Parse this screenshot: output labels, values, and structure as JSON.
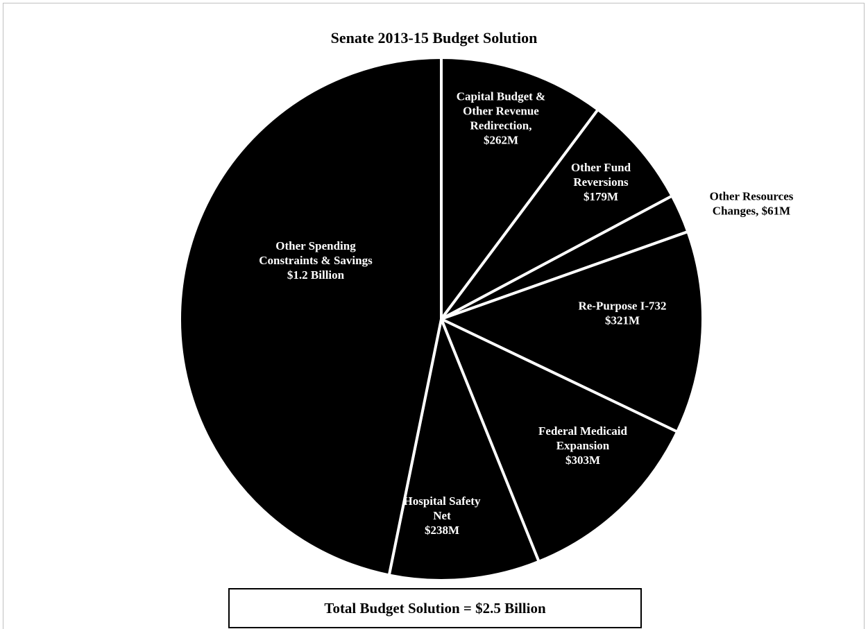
{
  "chart_data": {
    "type": "pie",
    "title": "Senate 2013-15 Budget Solution",
    "slices": [
      {
        "label": [
          "Capital Budget &",
          "Other Revenue",
          "Redirection,",
          "$262M"
        ],
        "value": 262,
        "label_color": "#ffffff"
      },
      {
        "label": [
          "Other Fund",
          "Reversions",
          "$179M"
        ],
        "value": 179,
        "label_color": "#ffffff"
      },
      {
        "label": [
          "Other Resources",
          "Changes,  $61M"
        ],
        "value": 61,
        "label_color": "#000000"
      },
      {
        "label": [
          "Re-Purpose I-732",
          "$321M"
        ],
        "value": 321,
        "label_color": "#ffffff"
      },
      {
        "label": [
          "Federal Medicaid",
          "Expansion",
          "$303M"
        ],
        "value": 303,
        "label_color": "#ffffff"
      },
      {
        "label": [
          "Hospital Safety",
          "Net",
          "$238M"
        ],
        "value": 238,
        "label_color": "#ffffff"
      },
      {
        "label": [
          "Other Spending",
          "Constraints & Savings",
          "$1.2 Billion"
        ],
        "value": 1200,
        "label_color": "#ffffff"
      }
    ],
    "slice_color": "#000000",
    "separator_color": "#ffffff",
    "total_label": "Total Budget Solution = $2.5 Billion"
  }
}
